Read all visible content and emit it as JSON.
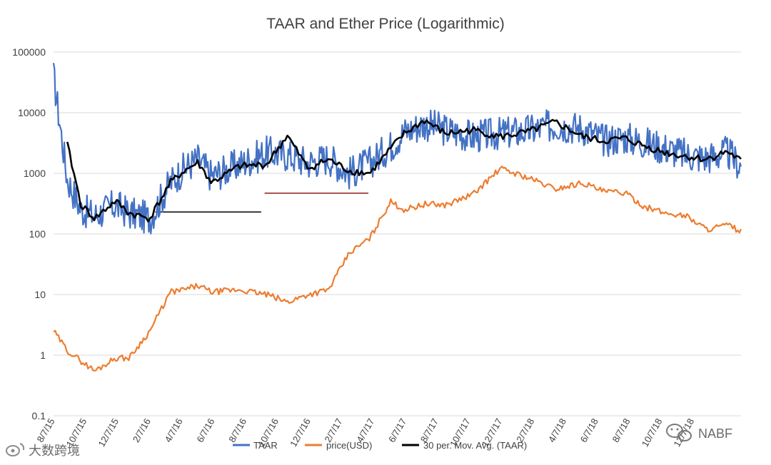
{
  "chart_data": {
    "type": "line",
    "title": "TAAR and Ether Price (Logarithmic)",
    "y_scale": "log",
    "ylim": [
      0.1,
      100000
    ],
    "yticks": [
      "100000",
      "10000",
      "1000",
      "100",
      "10",
      "1",
      "0.1"
    ],
    "yticks_values": [
      100000,
      10000,
      1000,
      100,
      10,
      1,
      0.1
    ],
    "x_range": [
      "8/7/15",
      "2/28/19"
    ],
    "xticks": [
      "8/7/15",
      "10/7/15",
      "12/7/15",
      "2/7/16",
      "4/7/16",
      "6/7/16",
      "8/7/16",
      "10/7/16",
      "12/7/16",
      "2/7/17",
      "4/7/17",
      "6/7/17",
      "8/7/17",
      "10/7/17",
      "12/7/17",
      "2/7/18",
      "4/7/18",
      "6/7/18",
      "8/7/18",
      "10/7/18",
      "12/7/18"
    ],
    "legend_position": "bottom",
    "series": [
      {
        "name": "TAAR",
        "color": "#4472c4",
        "x": [
          0,
          0.02,
          0.04,
          0.06,
          0.09,
          0.11,
          0.14,
          0.17,
          0.19,
          0.21,
          0.23,
          0.27,
          0.31,
          0.34,
          0.37,
          0.4,
          0.43,
          0.46,
          0.49,
          0.51,
          0.54,
          0.57,
          0.61,
          0.65,
          0.69,
          0.73,
          0.77,
          0.8,
          0.83,
          0.86,
          0.89,
          0.92,
          0.95,
          0.98,
          1.0
        ],
        "values": [
          40000,
          800,
          250,
          200,
          300,
          220,
          180,
          700,
          1200,
          1700,
          900,
          1400,
          2200,
          2000,
          1500,
          1800,
          1000,
          1500,
          2800,
          4800,
          6500,
          5200,
          4000,
          4500,
          5000,
          6300,
          5500,
          3500,
          3900,
          3200,
          2600,
          2000,
          1800,
          2200,
          1300
        ]
      },
      {
        "name": "price(USD)",
        "color": "#ed7d31",
        "x": [
          0,
          0.02,
          0.04,
          0.06,
          0.09,
          0.11,
          0.14,
          0.17,
          0.19,
          0.21,
          0.23,
          0.27,
          0.31,
          0.34,
          0.37,
          0.4,
          0.43,
          0.46,
          0.49,
          0.51,
          0.54,
          0.57,
          0.61,
          0.65,
          0.69,
          0.73,
          0.77,
          0.8,
          0.83,
          0.86,
          0.89,
          0.92,
          0.95,
          0.98,
          1.0
        ],
        "values": [
          2.5,
          1.2,
          0.8,
          0.55,
          0.9,
          0.9,
          2.5,
          11,
          12,
          14,
          11,
          12,
          10,
          7.5,
          10,
          12,
          48,
          85,
          340,
          250,
          310,
          300,
          450,
          1200,
          850,
          550,
          700,
          500,
          480,
          280,
          220,
          200,
          120,
          140,
          110
        ]
      },
      {
        "name": "30 per. Mov. Avg. (TAAR)",
        "color": "#000000",
        "x": [
          0.02,
          0.04,
          0.06,
          0.09,
          0.11,
          0.14,
          0.17,
          0.19,
          0.21,
          0.23,
          0.27,
          0.31,
          0.34,
          0.37,
          0.4,
          0.43,
          0.46,
          0.49,
          0.51,
          0.54,
          0.57,
          0.61,
          0.65,
          0.69,
          0.73,
          0.77,
          0.8,
          0.83,
          0.86,
          0.89,
          0.92,
          0.95,
          0.98,
          1.0
        ],
        "values": [
          3000,
          300,
          180,
          350,
          220,
          180,
          700,
          1100,
          1500,
          700,
          1300,
          1400,
          4200,
          1200,
          1700,
          1100,
          1000,
          2500,
          4500,
          7500,
          4500,
          5200,
          4000,
          4800,
          7000,
          4000,
          3400,
          3800,
          2800,
          2200,
          1900,
          1700,
          2300,
          1600
        ]
      }
    ],
    "annotations": [
      {
        "type": "hline",
        "y": 230,
        "x_from": 0.148,
        "x_to": 0.302,
        "color": "#000000"
      },
      {
        "type": "hline",
        "y": 470,
        "x_from": 0.307,
        "x_to": 0.458,
        "color": "#8b1a1a"
      }
    ],
    "watermark": {
      "left_icon": "weibo-icon",
      "left_text": "大数跨境",
      "right_icon": "wechat-icon",
      "right_text": "NABF"
    }
  }
}
